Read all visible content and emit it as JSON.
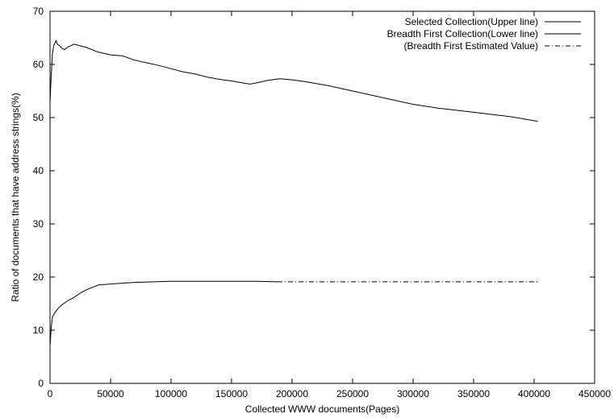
{
  "chart_data": {
    "type": "line",
    "title": "",
    "xlabel": "Collected WWW documents(Pages)",
    "ylabel": "Ratio of documents that have address strings(%)",
    "xlim": [
      0,
      450000
    ],
    "ylim": [
      0,
      70
    ],
    "xticks": [
      0,
      50000,
      100000,
      150000,
      200000,
      250000,
      300000,
      350000,
      400000,
      450000
    ],
    "yticks": [
      0,
      10,
      20,
      30,
      40,
      50,
      60,
      70
    ],
    "grid": false,
    "legend_position": "top-right",
    "series": [
      {
        "name": "Selected Collection(Upper line)",
        "style": "solid",
        "color": "#000000",
        "x": [
          0,
          1000,
          2000,
          3000,
          5000,
          6000,
          8000,
          10000,
          12000,
          15000,
          20000,
          30000,
          40000,
          50000,
          60000,
          70000,
          80000,
          90000,
          100000,
          110000,
          120000,
          130000,
          140000,
          150000,
          160000,
          165000,
          170000,
          180000,
          190000,
          200000,
          210000,
          220000,
          230000,
          250000,
          270000,
          300000,
          320000,
          350000,
          380000,
          403000
        ],
        "y": [
          53,
          58,
          62,
          63.5,
          64.5,
          63.8,
          63.5,
          63,
          62.8,
          63.3,
          63.8,
          63.2,
          62.3,
          61.8,
          61.6,
          60.8,
          60.3,
          59.8,
          59.2,
          58.6,
          58.2,
          57.6,
          57.2,
          56.9,
          56.5,
          56.3,
          56.5,
          57.0,
          57.3,
          57.1,
          56.8,
          56.4,
          56.0,
          55.0,
          54.0,
          52.5,
          51.8,
          51.0,
          50.2,
          49.3
        ]
      },
      {
        "name": "Breadth First Collection(Lower line)",
        "style": "solid",
        "color": "#000000",
        "x": [
          0,
          1000,
          2000,
          4000,
          7000,
          10000,
          15000,
          20000,
          25000,
          30000,
          40000,
          50000,
          70000,
          100000,
          130000,
          150000,
          170000,
          188000
        ],
        "y": [
          7,
          10.5,
          12.5,
          13.3,
          14.2,
          14.8,
          15.6,
          16.2,
          17.0,
          17.6,
          18.5,
          18.7,
          19.0,
          19.2,
          19.2,
          19.2,
          19.2,
          19.1
        ]
      },
      {
        "name": "(Breadth First Estimated Value)",
        "style": "dash-dot",
        "color": "#000000",
        "x": [
          188000,
          403000
        ],
        "y": [
          19.1,
          19.1
        ]
      }
    ]
  }
}
